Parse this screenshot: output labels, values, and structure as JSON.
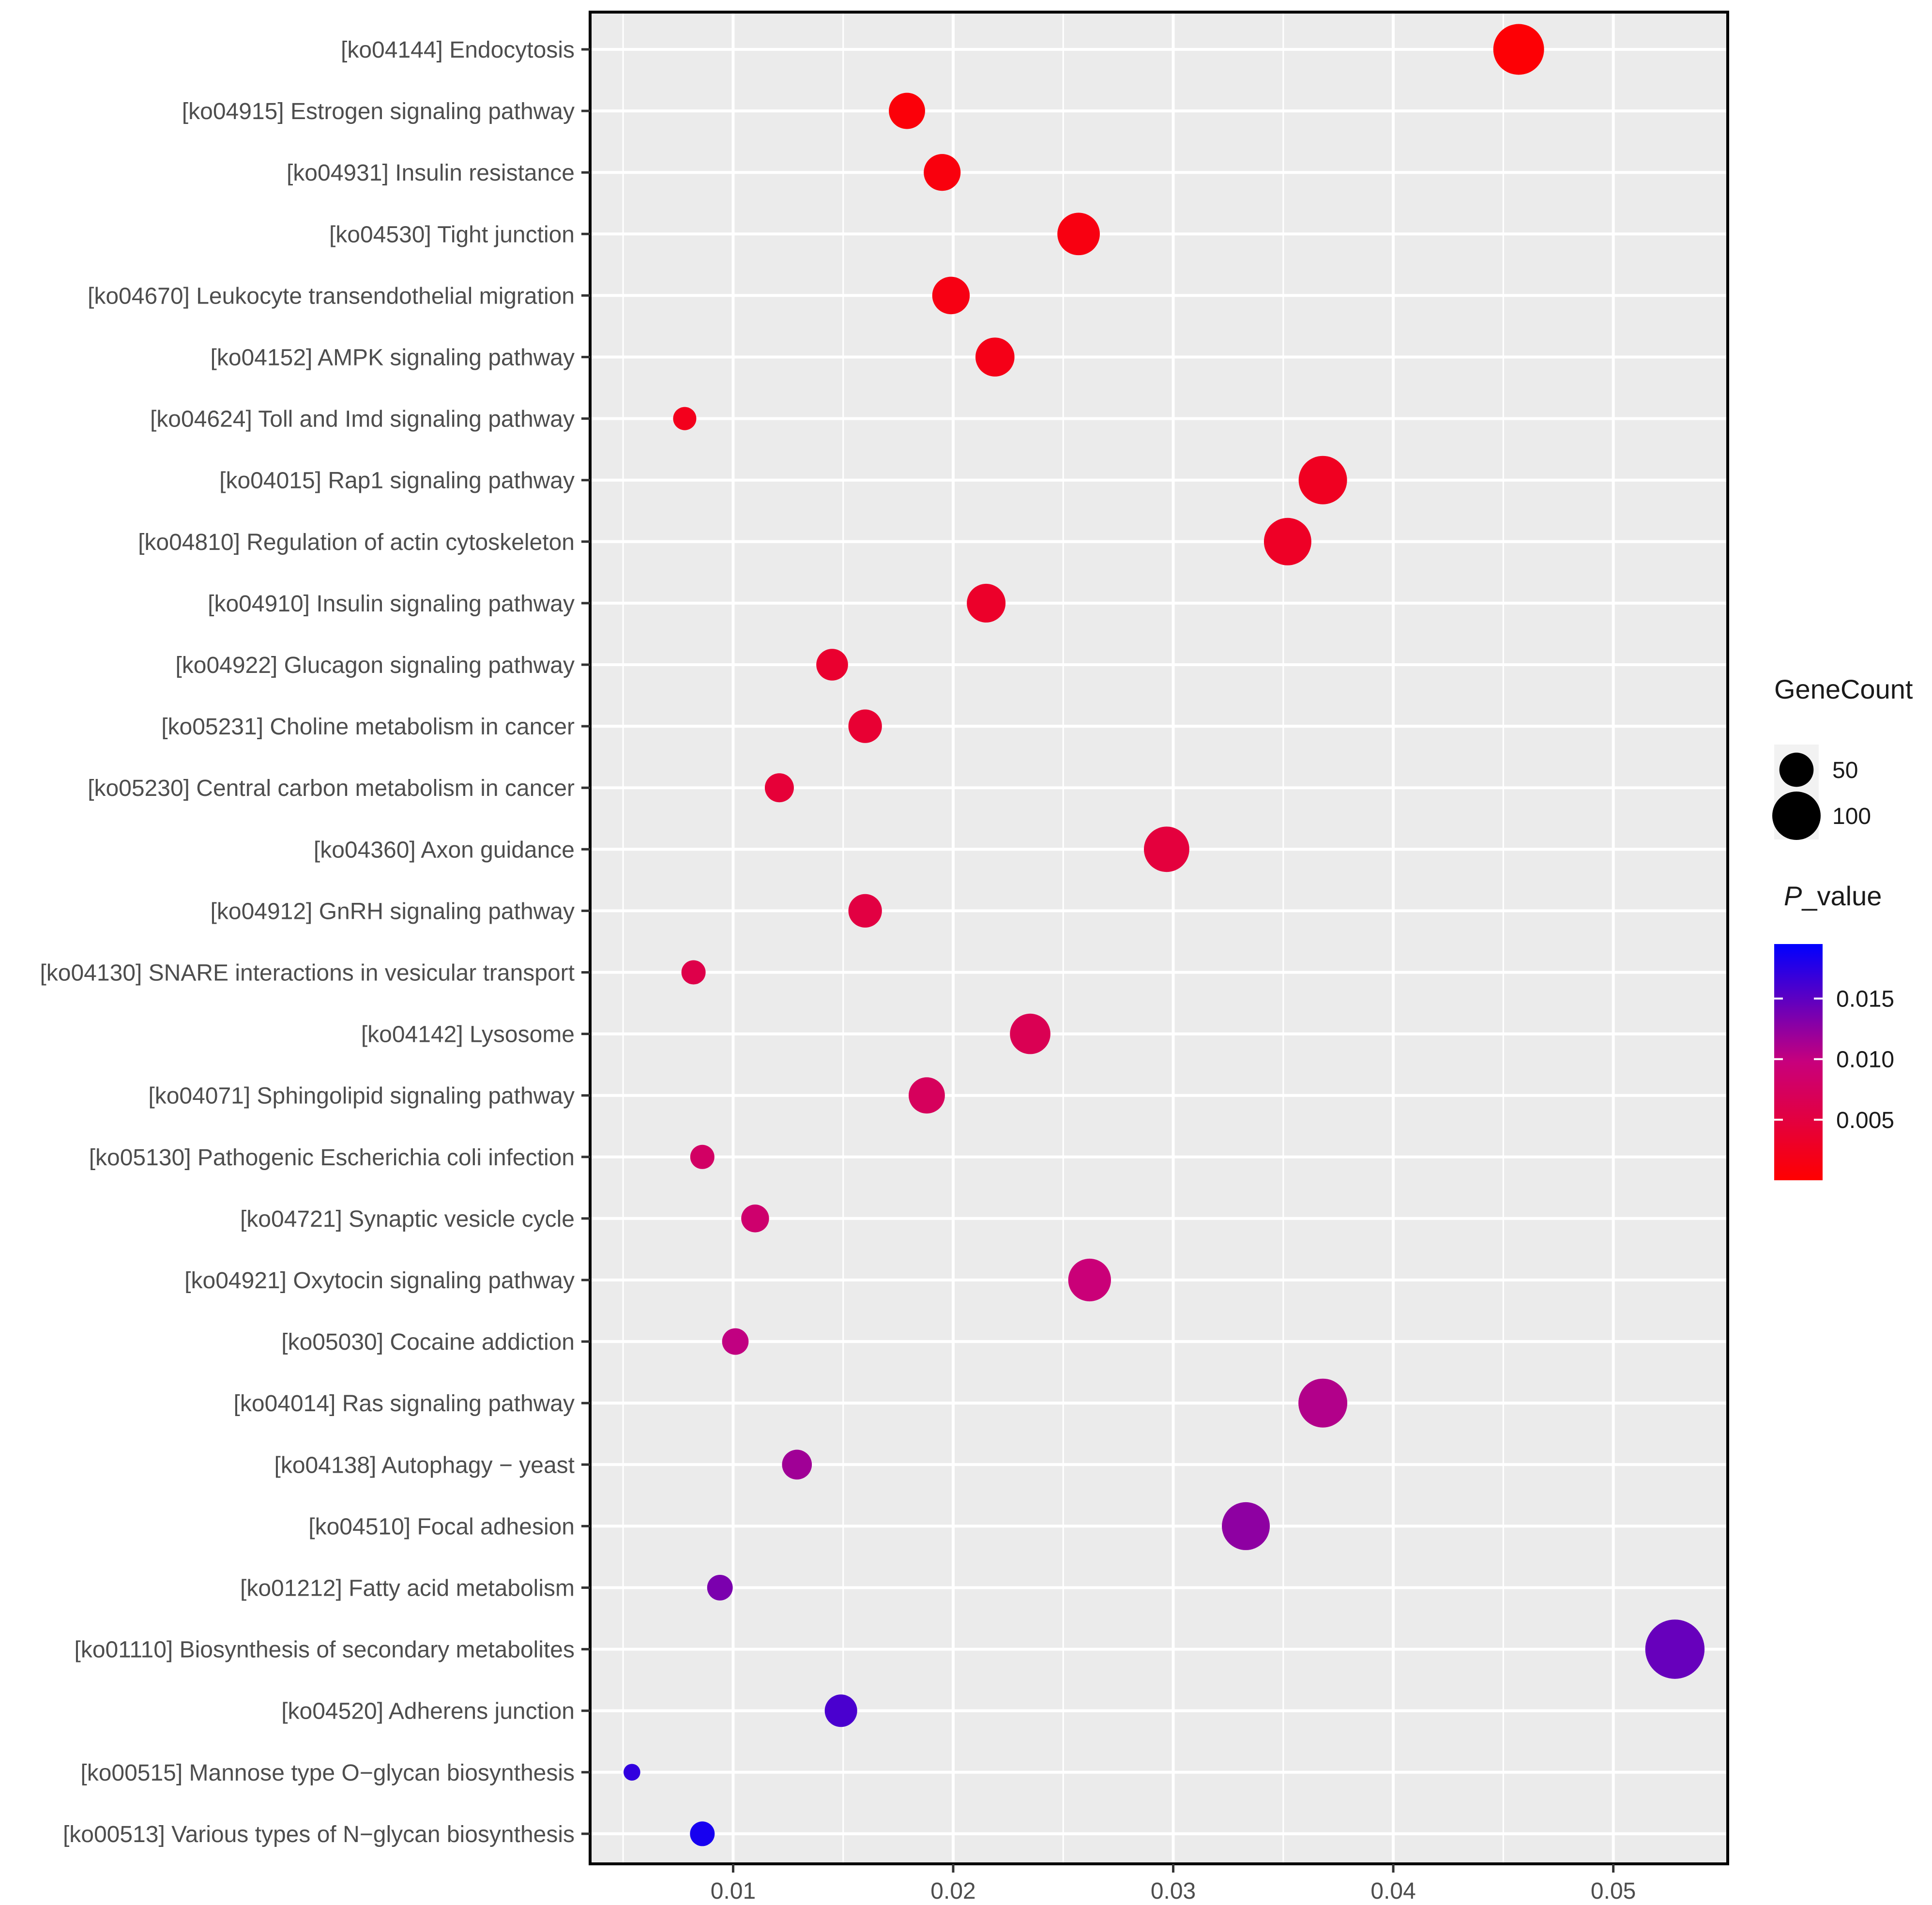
{
  "chart_data": {
    "type": "scatter",
    "title": "",
    "xlabel": "",
    "ylabel": "",
    "xlim": [
      0.0035,
      0.0552
    ],
    "x_ticks": [
      "0.01",
      "0.02",
      "0.03",
      "0.04",
      "0.05"
    ],
    "x_tick_values": [
      0.01,
      0.02,
      0.03,
      0.04,
      0.05
    ],
    "grid": true,
    "legend_position": "right",
    "categories": [
      "[ko04144] Endocytosis",
      "[ko04915] Estrogen signaling pathway",
      "[ko04931] Insulin resistance",
      "[ko04530] Tight junction",
      "[ko04670] Leukocyte transendothelial migration",
      "[ko04152] AMPK signaling pathway",
      "[ko04624] Toll and Imd signaling pathway",
      "[ko04015] Rap1 signaling pathway",
      "[ko04810] Regulation of actin cytoskeleton",
      "[ko04910] Insulin signaling pathway",
      "[ko04922] Glucagon signaling pathway",
      "[ko05231] Choline metabolism in cancer",
      "[ko05230] Central carbon metabolism in cancer",
      "[ko04360] Axon guidance",
      "[ko04912] GnRH signaling pathway",
      "[ko04130] SNARE interactions in vesicular transport",
      "[ko04142] Lysosome",
      "[ko04071] Sphingolipid signaling pathway",
      "[ko05130] Pathogenic Escherichia coli infection",
      "[ko04721] Synaptic vesicle cycle",
      "[ko04921] Oxytocin signaling pathway",
      "[ko05030] Cocaine addiction",
      "[ko04014] Ras signaling pathway",
      "[ko04138] Autophagy − yeast",
      "[ko04510] Focal adhesion",
      "[ko01212] Fatty acid metabolism",
      "[ko01110] Biosynthesis of secondary metabolites",
      "[ko04520] Adherens junction",
      "[ko00515] Mannose type O−glycan biosynthesis",
      "[ko00513] Various types of N−glycan biosynthesis"
    ],
    "x": [
      0.0457,
      0.0179,
      0.0195,
      0.0257,
      0.0199,
      0.0219,
      0.0078,
      0.0368,
      0.0352,
      0.0215,
      0.0145,
      0.016,
      0.0121,
      0.0297,
      0.016,
      0.0082,
      0.0235,
      0.0188,
      0.0086,
      0.011,
      0.0262,
      0.0101,
      0.0368,
      0.0129,
      0.0333,
      0.0094,
      0.0528,
      0.0149,
      0.0054,
      0.0086
    ],
    "gene_count": [
      110,
      56,
      58,
      77,
      60,
      65,
      23,
      100,
      96,
      64,
      43,
      48,
      36,
      88,
      48,
      25,
      70,
      56,
      25,
      33,
      78,
      30,
      102,
      38,
      98,
      28,
      150,
      45,
      12,
      26
    ],
    "p_value": [
      0.0004,
      0.0007,
      0.001,
      0.0013,
      0.0015,
      0.0018,
      0.0022,
      0.0026,
      0.003,
      0.0033,
      0.0037,
      0.004,
      0.0044,
      0.0048,
      0.0052,
      0.0058,
      0.0065,
      0.0072,
      0.0079,
      0.0086,
      0.0094,
      0.0101,
      0.0108,
      0.0117,
      0.0126,
      0.0135,
      0.0145,
      0.0159,
      0.0171,
      0.0184
    ],
    "size_legend": {
      "title": "GeneCount",
      "entries": [
        {
          "label": "50",
          "value": 50
        },
        {
          "label": "100",
          "value": 100
        }
      ]
    },
    "color_legend": {
      "title_italic": "P",
      "title_rest": "_value",
      "range": [
        0,
        0.0195
      ],
      "ticks": [
        "0.005",
        "0.010",
        "0.015"
      ],
      "tick_values": [
        0.005,
        0.01,
        0.015
      ],
      "low_color": "#ff0000",
      "high_color": "#0000ff"
    },
    "colors": {
      "panel_background": "#ebebeb",
      "grid_line": "#ffffff",
      "border": "#000000",
      "tick_text": "#4d4d4d"
    }
  }
}
